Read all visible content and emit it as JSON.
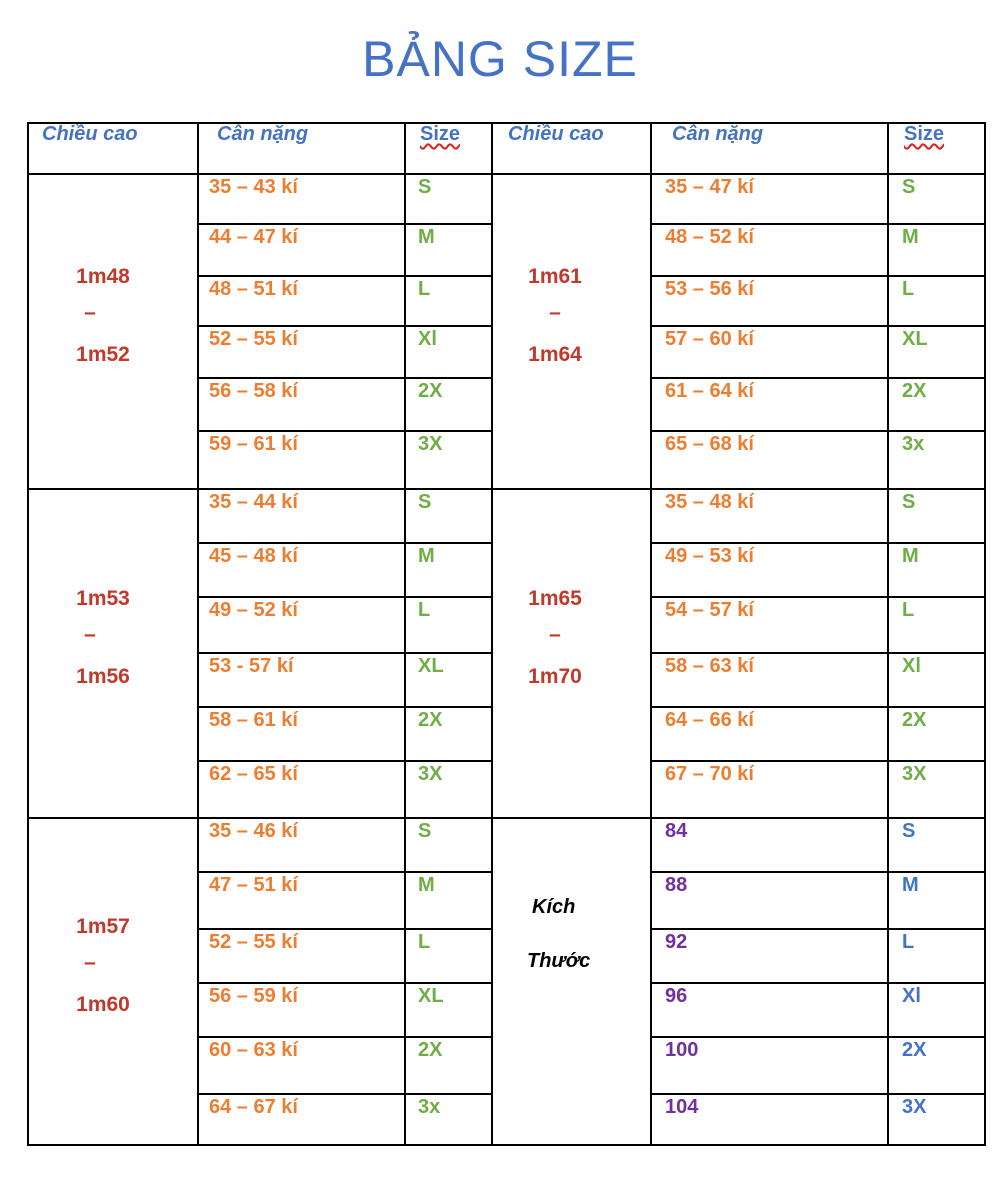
{
  "title": "BẢNG SIZE",
  "headers": {
    "height": "Chiều cao",
    "weight": "Cân nặng",
    "size": "Size"
  },
  "left_groups": [
    {
      "height_from": "1m48",
      "dash": "–",
      "height_to": "1m52",
      "rows": [
        {
          "weight": "35 – 43 kí",
          "size": "S"
        },
        {
          "weight": "44 – 47 kí",
          "size": "M"
        },
        {
          "weight": "48 – 51 kí",
          "size": "L"
        },
        {
          "weight": "52 – 55 kí",
          "size": "Xl"
        },
        {
          "weight": "56 – 58 kí",
          "size": "2X"
        },
        {
          "weight": "59 – 61 kí",
          "size": "3X"
        }
      ]
    },
    {
      "height_from": "1m53",
      "dash": "–",
      "height_to": "1m56",
      "rows": [
        {
          "weight": "35 – 44 kí",
          "size": "S"
        },
        {
          "weight": "45 – 48 kí",
          "size": "M"
        },
        {
          "weight": "49 – 52 kí",
          "size": "L"
        },
        {
          "weight": "53 -  57 kí",
          "size": "XL"
        },
        {
          "weight": "58 – 61 kí",
          "size": "2X"
        },
        {
          "weight": "62 – 65 kí",
          "size": "3X"
        }
      ]
    },
    {
      "height_from": "1m57",
      "dash": "–",
      "height_to": "1m60",
      "rows": [
        {
          "weight": "35 – 46 kí",
          "size": "S"
        },
        {
          "weight": "47 – 51 kí",
          "size": "M"
        },
        {
          "weight": "52 – 55 kí",
          "size": "L"
        },
        {
          "weight": "56 – 59 kí",
          "size": "XL"
        },
        {
          "weight": "60 – 63 kí",
          "size": "2X"
        },
        {
          "weight": "64 – 67 kí",
          "size": "3x"
        }
      ]
    }
  ],
  "right_groups": [
    {
      "height_from": "1m61",
      "dash": "–",
      "height_to": "1m64",
      "rows": [
        {
          "weight": "35 – 47 kí",
          "size": "S"
        },
        {
          "weight": "48 – 52 kí",
          "size": "M"
        },
        {
          "weight": "53 – 56 kí",
          "size": "L"
        },
        {
          "weight": "57 – 60 kí",
          "size": "XL"
        },
        {
          "weight": "61 – 64 kí",
          "size": "2X"
        },
        {
          "weight": "65 – 68 kí",
          "size": "3x"
        }
      ]
    },
    {
      "height_from": "1m65",
      "dash": "–",
      "height_to": "1m70",
      "rows": [
        {
          "weight": "35 – 48 kí",
          "size": "S"
        },
        {
          "weight": "49 – 53 kí",
          "size": "M"
        },
        {
          "weight": "54 – 57 kí",
          "size": "L"
        },
        {
          "weight": "58 – 63 kí",
          "size": "Xl"
        },
        {
          "weight": "64 – 66 kí",
          "size": "2X"
        },
        {
          "weight": "67 – 70 kí",
          "size": "3X"
        }
      ]
    }
  ],
  "measurements": {
    "label_line1": "Kích",
    "label_line2": "Thước",
    "rows": [
      {
        "value": "84",
        "size": "S"
      },
      {
        "value": "88",
        "size": "M"
      },
      {
        "value": "92",
        "size": "L"
      },
      {
        "value": "96",
        "size": "Xl"
      },
      {
        "value": "100",
        "size": "2X"
      },
      {
        "value": "104",
        "size": "3X"
      }
    ]
  },
  "colors": {
    "title": "#4472c4",
    "header": "#4472c4",
    "height": "#c0392b",
    "weight": "#ed7d31",
    "size": "#70ad47",
    "measurement": "#7030a0",
    "measurement_size": "#4472c4"
  }
}
